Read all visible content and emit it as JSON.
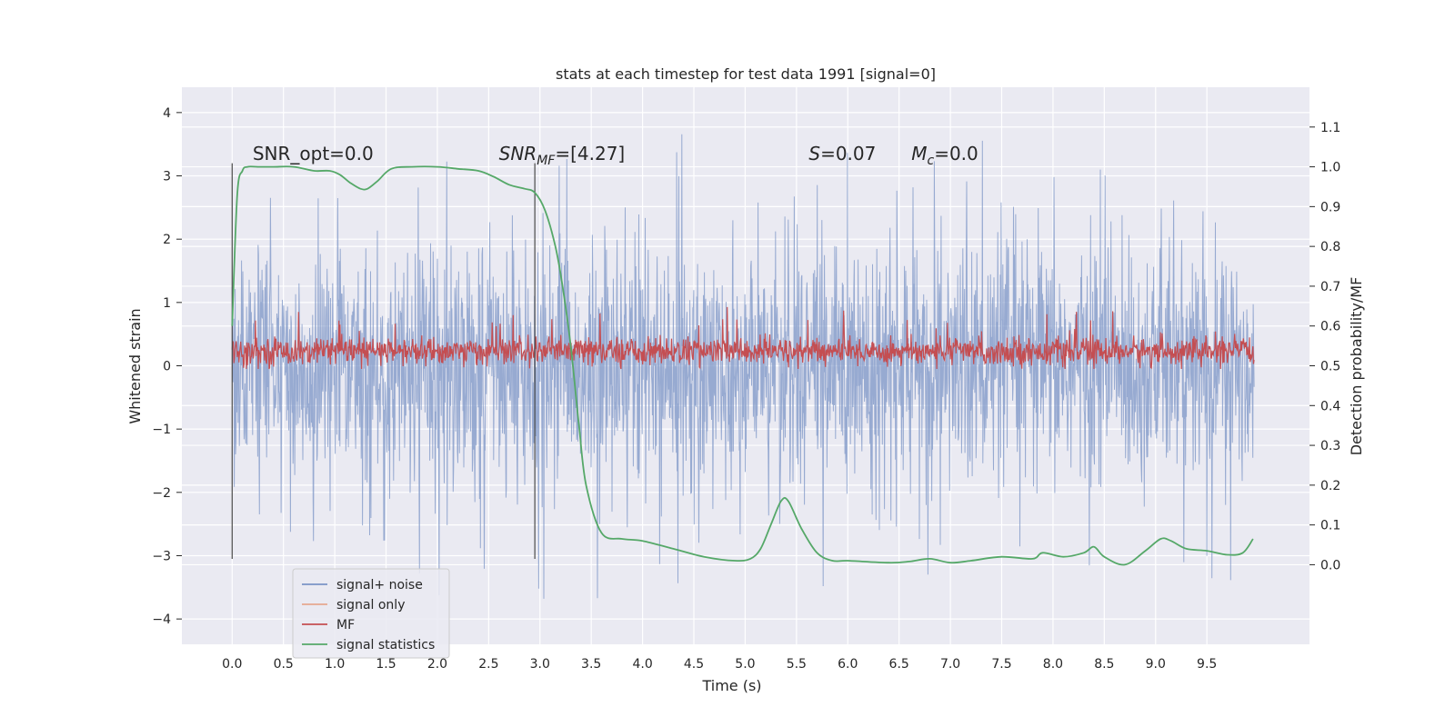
{
  "chart_data": {
    "type": "line",
    "title": "stats at each timestep for test data 1991 [signal=0]",
    "xlabel": "Time (s)",
    "ylabel_left": "Whitened strain",
    "ylabel_right": "Detection probability/MF",
    "xlim": [
      -0.49,
      10.5
    ],
    "ylim_left": [
      -4.4,
      4.4
    ],
    "ylim_right": [
      -0.2,
      1.2
    ],
    "x_ticks": [
      0.0,
      0.5,
      1.0,
      1.5,
      2.0,
      2.5,
      3.0,
      3.5,
      4.0,
      4.5,
      5.0,
      5.5,
      6.0,
      6.5,
      7.0,
      7.5,
      8.0,
      8.5,
      9.0,
      9.5
    ],
    "x_tick_labels": [
      "0.0",
      "0.5",
      "1.0",
      "1.5",
      "2.0",
      "2.5",
      "3.0",
      "3.5",
      "4.0",
      "4.5",
      "5.0",
      "5.5",
      "6.0",
      "6.5",
      "7.0",
      "7.5",
      "8.0",
      "8.5",
      "9.0",
      "9.5"
    ],
    "y_left_ticks": [
      4,
      3,
      2,
      1,
      0,
      -1,
      -2,
      -3,
      -4
    ],
    "y_left_tick_labels": [
      "4",
      "3",
      "2",
      "1",
      "0",
      "−1",
      "−2",
      "−3",
      "−4"
    ],
    "y_right_ticks": [
      1.1,
      1.0,
      0.9,
      0.8,
      0.7,
      0.6,
      0.5,
      0.4,
      0.3,
      0.2,
      0.1,
      0.0
    ],
    "y_right_tick_labels": [
      "1.1",
      "1.0",
      "0.9",
      "0.8",
      "0.7",
      "0.6",
      "0.5",
      "0.4",
      "0.3",
      "0.2",
      "0.1",
      "0.0"
    ],
    "grid": true,
    "legend_position": "lower-left",
    "series": [
      {
        "name": "signal+ noise",
        "axis": "left",
        "color": "#7b94c6",
        "x_range": [
          0.0,
          9.96
        ],
        "description_values": {
          "band_low": -2.0,
          "band_high": 2.0,
          "peak_max": 4.05,
          "peak_min": -3.9
        }
      },
      {
        "name": "signal only",
        "axis": "left",
        "color": "#e6a78f",
        "values": []
      },
      {
        "name": "MF",
        "axis": "left",
        "color": "#c44e52",
        "x_range": [
          0.0,
          9.96
        ],
        "description_values": {
          "center": 0.23,
          "spread": 0.2,
          "peak_max": 0.95
        }
      },
      {
        "name": "signal statistics",
        "axis": "right",
        "color": "#55a868",
        "x": [
          0.0,
          0.05,
          0.1,
          0.15,
          0.25,
          0.4,
          0.6,
          0.8,
          0.95,
          1.05,
          1.15,
          1.25,
          1.32,
          1.42,
          1.55,
          1.75,
          2.0,
          2.2,
          2.4,
          2.55,
          2.7,
          2.85,
          2.95,
          3.05,
          3.15,
          3.22,
          3.3,
          3.38,
          3.45,
          3.6,
          3.8,
          4.0,
          4.3,
          4.6,
          4.9,
          5.05,
          5.15,
          5.25,
          5.35,
          5.42,
          5.55,
          5.7,
          5.85,
          6.0,
          6.4,
          6.6,
          6.8,
          7.0,
          7.2,
          7.5,
          7.8,
          7.9,
          8.1,
          8.3,
          8.4,
          8.5,
          8.7,
          8.9,
          9.05,
          9.15,
          9.3,
          9.5,
          9.7,
          9.85,
          9.95
        ],
        "values": [
          0.6,
          0.93,
          0.99,
          1.0,
          1.0,
          1.0,
          1.0,
          0.99,
          0.99,
          0.98,
          0.96,
          0.945,
          0.945,
          0.965,
          0.995,
          1.0,
          1.0,
          0.995,
          0.99,
          0.975,
          0.955,
          0.945,
          0.935,
          0.89,
          0.8,
          0.7,
          0.55,
          0.35,
          0.2,
          0.08,
          0.065,
          0.06,
          0.04,
          0.02,
          0.01,
          0.015,
          0.04,
          0.1,
          0.16,
          0.16,
          0.09,
          0.03,
          0.01,
          0.01,
          0.005,
          0.008,
          0.015,
          0.005,
          0.01,
          0.02,
          0.015,
          0.03,
          0.02,
          0.03,
          0.045,
          0.02,
          0.0,
          0.035,
          0.065,
          0.06,
          0.04,
          0.035,
          0.025,
          0.03,
          0.065
        ]
      }
    ],
    "vertical_lines": [
      0.0,
      2.95
    ],
    "annotations": [
      {
        "text_parts": [
          {
            "t": "SNR_opt=0.0",
            "italic": false
          }
        ],
        "x": 0.2,
        "y_left": 3.25
      },
      {
        "text_parts": [
          {
            "t": "SNR",
            "italic": true
          },
          {
            "t": "MF",
            "italic": true,
            "sub": true
          },
          {
            "t": "=[4.27]",
            "italic": false
          }
        ],
        "x": 2.6,
        "y_left": 3.25
      },
      {
        "text_parts": [
          {
            "t": "S",
            "italic": true
          },
          {
            "t": "=0.07",
            "italic": false
          }
        ],
        "x": 5.62,
        "y_left": 3.25
      },
      {
        "text_parts": [
          {
            "t": "M",
            "italic": true
          },
          {
            "t": "c",
            "italic": true,
            "sub": true
          },
          {
            "t": "=0.0",
            "italic": false
          }
        ],
        "x": 6.62,
        "y_left": 3.25
      }
    ]
  },
  "colors": {
    "plot_background": "#eaeaf2",
    "grid": "#ffffff",
    "text": "#262626",
    "vline": "#4a4a4a"
  }
}
